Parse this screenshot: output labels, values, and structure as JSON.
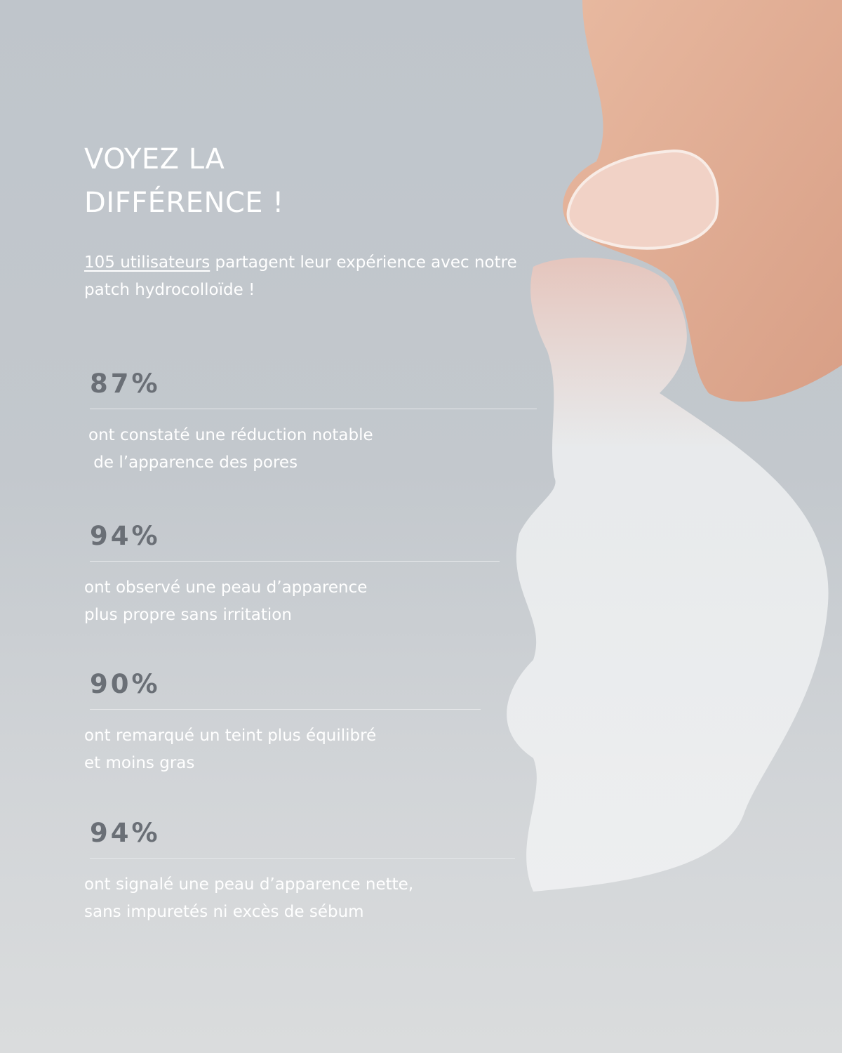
{
  "headline": {
    "line1": "VOYEZ LA",
    "line2": "DIFFÉRENCE !"
  },
  "intro": {
    "link": "105 utilisateurs",
    "text": " partagent leur expérience avec notre patch hydrocolloïde !"
  },
  "stats": [
    {
      "value": "87%",
      "line1": "ont constaté une réduction notable",
      "line2": " de l’apparence des pores"
    },
    {
      "value": "94%",
      "line1": "ont observé une peau d’apparence",
      "line2": "plus propre sans irritation"
    },
    {
      "value": "90%",
      "line1": "ont remarqué un teint plus équilibré",
      "line2": "et moins gras"
    },
    {
      "value": "94%",
      "line1": "ont signalé une peau d’apparence nette,",
      "line2": "sans impuretés ni excès de sébum"
    }
  ],
  "colors": {
    "percent": "#6a6f76",
    "text": "#ffffff",
    "background": "#c3c8cd"
  }
}
